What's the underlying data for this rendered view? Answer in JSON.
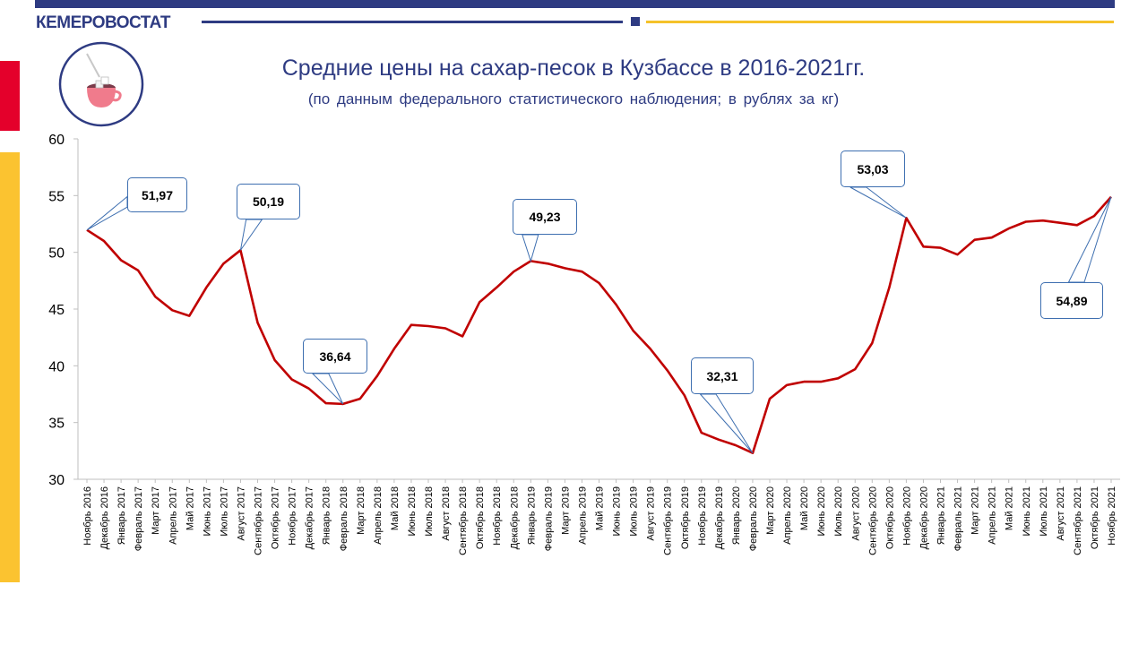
{
  "header": {
    "brand": "КЕМЕРОВОСТАТ"
  },
  "colors": {
    "navy": "#2e3b82",
    "yellow": "#f5c22a",
    "red_accent": "#e4002b",
    "line": "#c00000",
    "callout_border": "#3e6fb0"
  },
  "icons": {
    "logo": "sugar-cup-icon"
  },
  "chart_data": {
    "type": "line",
    "title": "Средние цены на сахар-песок в Кузбассе в 2016-2021гг.",
    "subtitle": "(по данным федерального статистического наблюдения; в рублях за кг)",
    "xlabel": "",
    "ylabel": "",
    "ylim": [
      30,
      60
    ],
    "yticks": [
      30,
      35,
      40,
      45,
      50,
      55,
      60
    ],
    "grid": false,
    "legend": "none",
    "categories": [
      "Ноябрь 2016",
      "Декабрь 2016",
      "Январь 2017",
      "Февраль 2017",
      "Март 2017",
      "Апрель 2017",
      "Май 2017",
      "Июнь 2017",
      "Июль 2017",
      "Август 2017",
      "Сентябрь 2017",
      "Октябрь 2017",
      "Ноябрь 2017",
      "Декабрь 2017",
      "Январь 2018",
      "Февраль 2018",
      "Март 2018",
      "Апрель 2018",
      "Май 2018",
      "Июнь 2018",
      "Июль 2018",
      "Август 2018",
      "Сентябрь 2018",
      "Октябрь 2018",
      "Ноябрь 2018",
      "Декабрь 2018",
      "Январь 2019",
      "Февраль 2019",
      "Март 2019",
      "Апрель 2019",
      "Май 2019",
      "Июнь 2019",
      "Июль 2019",
      "Август 2019",
      "Сентябрь 2019",
      "Октябрь 2019",
      "Ноябрь 2019",
      "Декабрь 2019",
      "Январь 2020",
      "Февраль 2020",
      "Март 2020",
      "Апрель 2020",
      "Май 2020",
      "Июнь 2020",
      "Июль 2020",
      "Август 2020",
      "Сентябрь 2020",
      "Октябрь 2020",
      "Ноябрь 2020",
      "Декабрь 2020",
      "Январь 2021",
      "Февраль 2021",
      "Март 2021",
      "Апрель 2021",
      "Май 2021",
      "Июнь 2021",
      "Июль 2021",
      "Август 2021",
      "Сентябрь 2021",
      "Октябрь 2021",
      "Ноябрь 2021"
    ],
    "series": [
      {
        "values": [
          51.97,
          51.0,
          49.3,
          48.4,
          46.1,
          44.9,
          44.4,
          46.9,
          49.0,
          50.19,
          43.8,
          40.5,
          38.8,
          38.0,
          36.7,
          36.64,
          37.1,
          39.1,
          41.5,
          43.6,
          43.5,
          43.3,
          42.6,
          45.6,
          46.9,
          48.3,
          49.23,
          49.0,
          48.6,
          48.3,
          47.3,
          45.4,
          43.1,
          41.5,
          39.6,
          37.4,
          34.1,
          33.5,
          33.0,
          32.31,
          37.1,
          38.3,
          38.6,
          38.6,
          38.9,
          39.7,
          42.0,
          46.9,
          53.03,
          50.5,
          50.4,
          49.8,
          51.1,
          51.3,
          52.1,
          52.7,
          52.8,
          52.6,
          52.4,
          53.2,
          54.89
        ]
      }
    ],
    "annotations": [
      {
        "index": 0,
        "label": "51,97"
      },
      {
        "index": 9,
        "label": "50,19"
      },
      {
        "index": 15,
        "label": "36,64"
      },
      {
        "index": 26,
        "label": "49,23"
      },
      {
        "index": 39,
        "label": "32,31"
      },
      {
        "index": 48,
        "label": "53,03"
      },
      {
        "index": 60,
        "label": "54,89"
      }
    ]
  }
}
